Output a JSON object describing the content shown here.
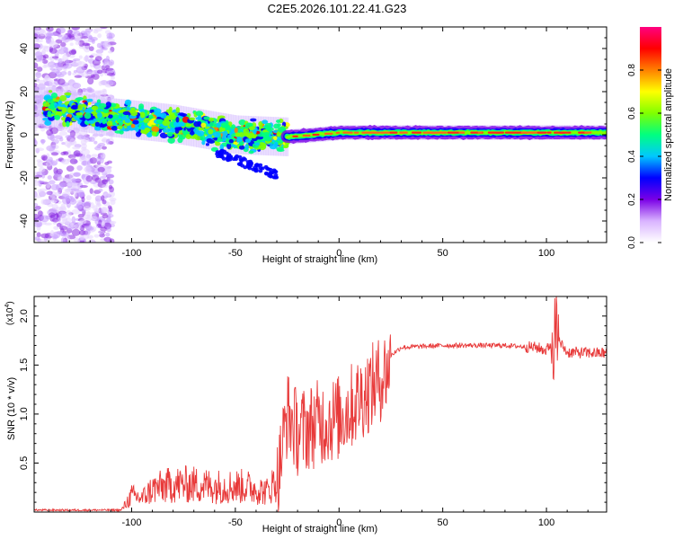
{
  "title": "C2E5.2026.101.22.41.G23",
  "chart_data": [
    {
      "type": "heatmap",
      "name": "spectrogram",
      "xlabel": "Height of straight line (km)",
      "ylabel": "Frequency (Hz)",
      "xlim": [
        -147,
        129
      ],
      "ylim": [
        -50,
        50
      ],
      "xticks": [
        "-100",
        "-50",
        "0",
        "50",
        "100"
      ],
      "xtick_values": [
        -100,
        -50,
        0,
        50,
        100
      ],
      "yticks": [
        "40",
        "20",
        "0",
        "-20",
        "-40"
      ],
      "ytick_values": [
        40,
        20,
        0,
        -20,
        -40
      ],
      "colorbar": {
        "label": "Normalized spectral amplitude",
        "range": [
          0,
          1
        ],
        "ticks": [
          "0.0",
          "0.2",
          "0.4",
          "0.6",
          "0.8"
        ],
        "tick_values": [
          0.0,
          0.2,
          0.4,
          0.6,
          0.8
        ],
        "colors": [
          "#ffffff",
          "#d9b3ff",
          "#7a00e6",
          "#0000ff",
          "#00c8ff",
          "#00ff80",
          "#80ff00",
          "#ffff00",
          "#ff8000",
          "#ff0000",
          "#ff0080"
        ]
      },
      "trend": {
        "description_points": [
          [
            -140,
            13
          ],
          [
            -110,
            8
          ],
          [
            -80,
            5
          ],
          [
            -50,
            0
          ],
          [
            -25,
            -1
          ],
          [
            0,
            1
          ],
          [
            20,
            1
          ],
          [
            50,
            1
          ],
          [
            100,
            1
          ],
          [
            129,
            1
          ]
        ]
      }
    },
    {
      "type": "line",
      "name": "snr",
      "xlabel": "Height of straight line (km)",
      "ylabel": "SNR (10 * v/v)",
      "yscale_label": "(x10",
      "yscale_exp": "4",
      "yscale_close": ")",
      "xlim": [
        -147,
        129
      ],
      "ylim": [
        0,
        2.2
      ],
      "xticks": [
        "-100",
        "-50",
        "0",
        "50",
        "100"
      ],
      "xtick_values": [
        -100,
        -50,
        0,
        50,
        100
      ],
      "yticks": [
        "2.0",
        "1.5",
        "1.0",
        "0.5"
      ],
      "ytick_values": [
        2.0,
        1.5,
        1.0,
        0.5
      ],
      "color": "#e83a3a",
      "series": [
        {
          "name": "SNR",
          "envelope_points": [
            [
              -147,
              0.02
            ],
            [
              -105,
              0.02
            ],
            [
              -100,
              0.18
            ],
            [
              -95,
              0.15
            ],
            [
              -90,
              0.25
            ],
            [
              -80,
              0.3
            ],
            [
              -70,
              0.3
            ],
            [
              -60,
              0.28
            ],
            [
              -45,
              0.28
            ],
            [
              -35,
              0.22
            ],
            [
              -30,
              0.35
            ],
            [
              -27,
              0.8
            ],
            [
              -25,
              1.1
            ],
            [
              -20,
              0.9
            ],
            [
              -10,
              1.0
            ],
            [
              0,
              1.05
            ],
            [
              10,
              1.25
            ],
            [
              20,
              1.45
            ],
            [
              25,
              1.6
            ],
            [
              30,
              1.68
            ],
            [
              50,
              1.7
            ],
            [
              80,
              1.7
            ],
            [
              95,
              1.68
            ],
            [
              100,
              1.65
            ],
            [
              104,
              1.8
            ],
            [
              110,
              1.63
            ],
            [
              129,
              1.62
            ]
          ]
        }
      ]
    }
  ]
}
